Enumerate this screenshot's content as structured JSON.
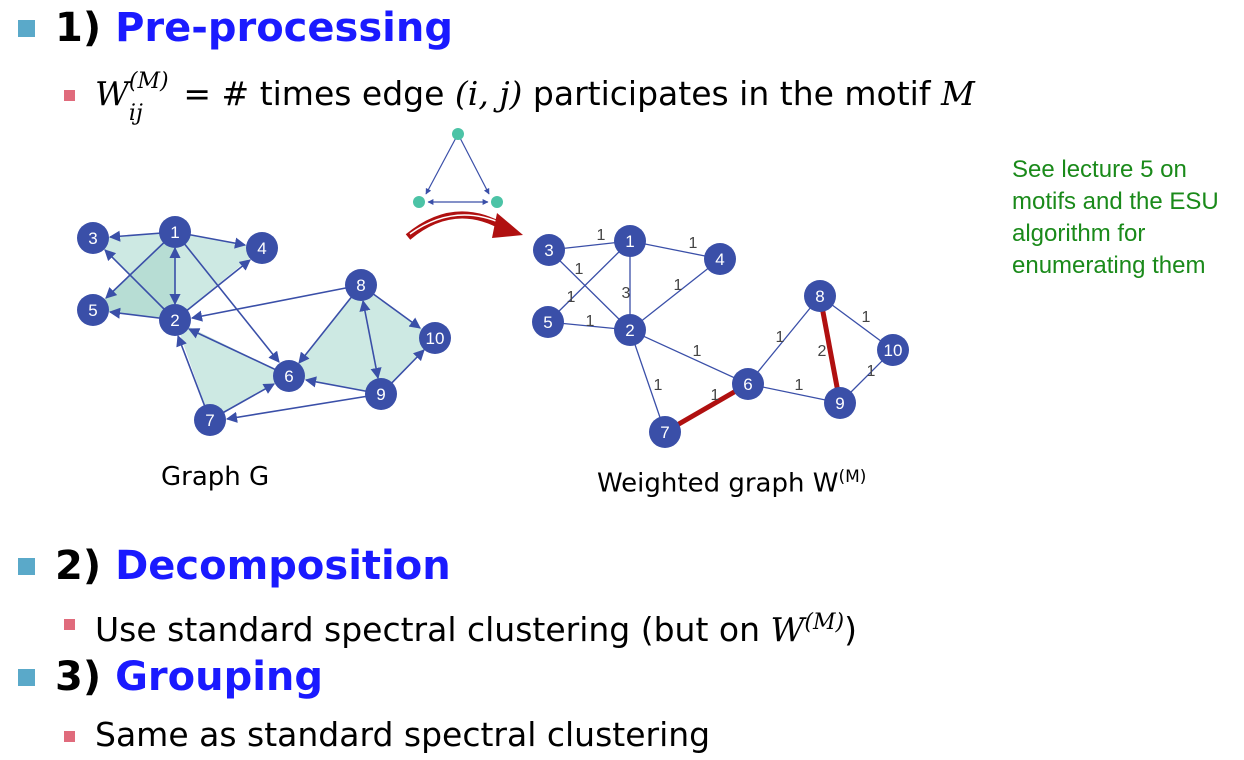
{
  "step1": {
    "number": "1)",
    "title": "Pre-processing",
    "formula_symbol": "W",
    "formula_sup": "(M)",
    "formula_sub": "ij",
    "formula_text_a": " = # times edge ",
    "formula_edge": "(i, j)",
    "formula_text_b": " participates in the motif ",
    "formula_motif": "M"
  },
  "side_note": "See lecture 5 on motifs and the ESU algorithm for enumerating them",
  "graph_g": {
    "caption": "Graph G",
    "nodes": [
      "1",
      "2",
      "3",
      "4",
      "5",
      "6",
      "7",
      "8",
      "9",
      "10"
    ]
  },
  "weighted_graph": {
    "caption_base": "Weighted graph W",
    "caption_sup": "(M)",
    "nodes": [
      "1",
      "2",
      "3",
      "4",
      "5",
      "6",
      "7",
      "8",
      "9",
      "10"
    ],
    "edge_weights": [
      {
        "edge": "3-1",
        "weight": "1"
      },
      {
        "edge": "1-4",
        "weight": "1"
      },
      {
        "edge": "3-2",
        "weight": "1"
      },
      {
        "edge": "1-5",
        "weight": "1"
      },
      {
        "edge": "1-2",
        "weight": "3"
      },
      {
        "edge": "4-2",
        "weight": "1"
      },
      {
        "edge": "5-2",
        "weight": "1"
      },
      {
        "edge": "2-6",
        "weight": "1"
      },
      {
        "edge": "2-7",
        "weight": "1"
      },
      {
        "edge": "7-6",
        "weight": "1"
      },
      {
        "edge": "6-8",
        "weight": "1"
      },
      {
        "edge": "8-9",
        "weight": "2"
      },
      {
        "edge": "8-10",
        "weight": "1"
      },
      {
        "edge": "6-9",
        "weight": "1"
      },
      {
        "edge": "9-10",
        "weight": "1"
      }
    ]
  },
  "step2": {
    "number": "2)",
    "title": "Decomposition",
    "text_a": "Use standard spectral clustering (but on ",
    "symbol": "W",
    "sup": "(M)",
    "text_b": ")"
  },
  "step3": {
    "number": "3)",
    "title": "Grouping",
    "text": "Same as standard spectral clustering"
  },
  "colors": {
    "heading_blue": "#1a1aff",
    "node_blue": "#3a4fa8",
    "motif_fill": "#cde9e3",
    "highlight_red": "#b01010",
    "note_green": "#1a8a1a",
    "motif_dot": "#4cc3a6"
  }
}
